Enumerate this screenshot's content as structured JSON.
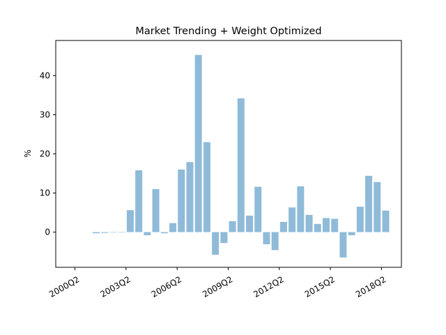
{
  "chart_data": {
    "type": "bar",
    "title": "Market Trending + Weight Optimized",
    "xlabel": "",
    "ylabel": "%",
    "ylim": [
      -9,
      49
    ],
    "x_tick_labels": [
      "2000Q2",
      "2003Q2",
      "2006Q2",
      "2009Q2",
      "2012Q2",
      "2015Q2",
      "2018Q2"
    ],
    "y_tick_labels": [
      "0",
      "10",
      "20",
      "30",
      "40"
    ],
    "y_ticks": [
      0,
      10,
      20,
      30,
      40
    ],
    "bar_color": "#8fbbd9",
    "grid": false,
    "categories": [
      "2001Q3",
      "2002Q1",
      "2002Q3",
      "2003Q1",
      "2003Q3",
      "2004Q1",
      "2004Q3",
      "2005Q1",
      "2005Q3",
      "2006Q1",
      "2006Q3",
      "2007Q1",
      "2007Q3",
      "2008Q1",
      "2008Q3",
      "2009Q1",
      "2009Q3",
      "2010Q1",
      "2010Q3",
      "2011Q1",
      "2011Q3",
      "2012Q1",
      "2012Q3",
      "2013Q1",
      "2013Q3",
      "2014Q1",
      "2014Q3",
      "2015Q1",
      "2015Q3",
      "2016Q1",
      "2016Q3",
      "2017Q1",
      "2017Q3",
      "2018Q1",
      "2018Q3"
    ],
    "values": [
      -0.3,
      -0.2,
      0.0,
      0.0,
      5.6,
      15.8,
      -0.8,
      11.0,
      -0.3,
      2.3,
      16.0,
      17.9,
      45.3,
      23.0,
      -5.8,
      -2.8,
      2.8,
      34.2,
      4.2,
      11.6,
      -3.1,
      -4.6,
      2.6,
      6.3,
      11.7,
      4.4,
      2.1,
      3.6,
      3.4,
      -6.5,
      -0.8,
      6.5,
      14.4,
      12.8,
      5.5
    ]
  }
}
